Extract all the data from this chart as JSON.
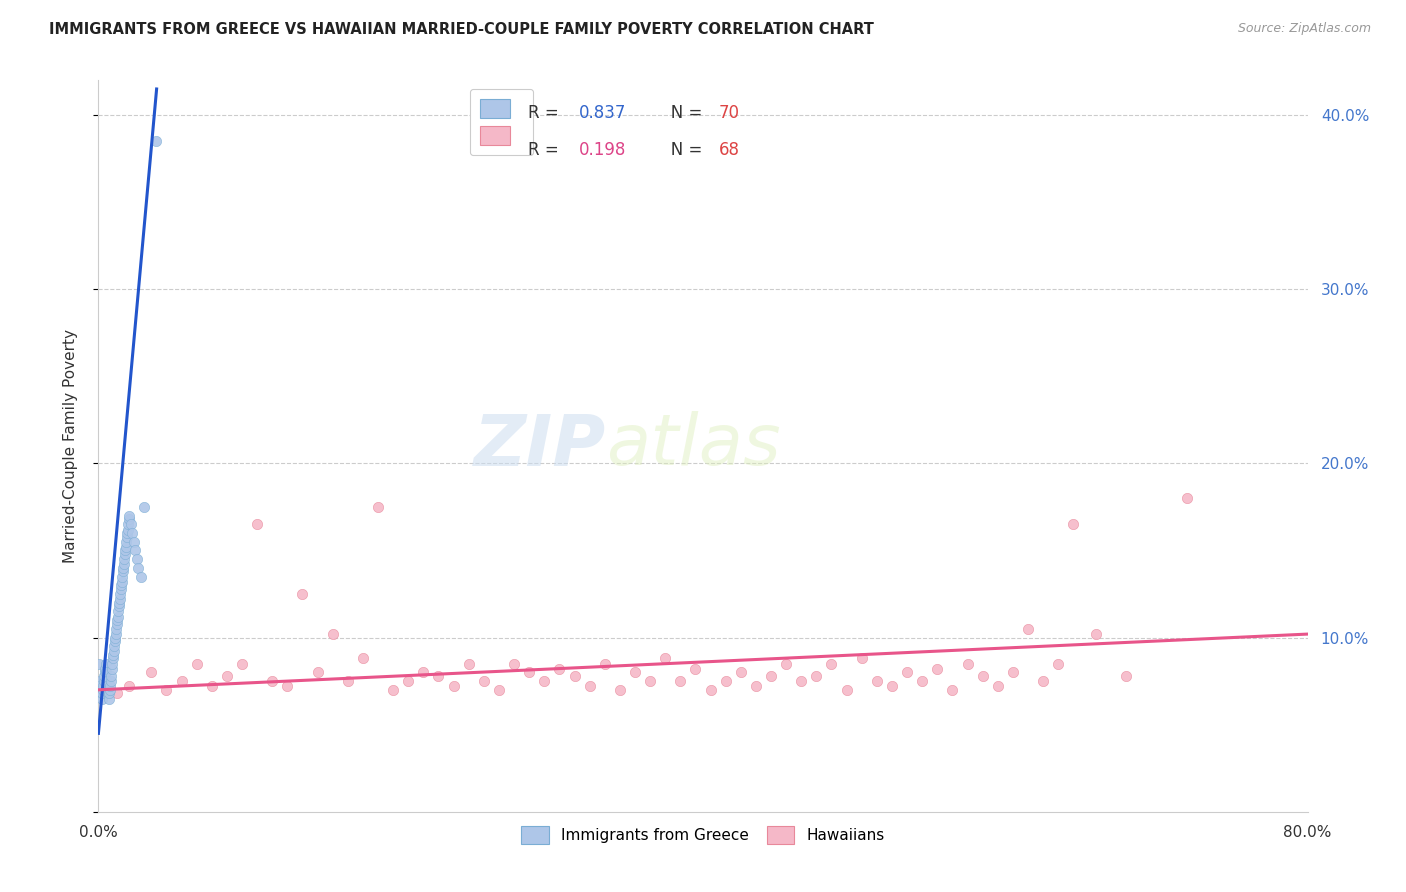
{
  "title": "IMMIGRANTS FROM GREECE VS HAWAIIAN MARRIED-COUPLE FAMILY POVERTY CORRELATION CHART",
  "source": "Source: ZipAtlas.com",
  "ylabel": "Married-Couple Family Poverty",
  "legend_blue_R": "0.837",
  "legend_blue_N": "70",
  "legend_pink_R": "0.198",
  "legend_pink_N": "68",
  "watermark_zip": "ZIP",
  "watermark_atlas": "atlas",
  "blue_color": "#aec6e8",
  "blue_edge": "#7aadd4",
  "blue_line_color": "#2255cc",
  "pink_color": "#f5b8c8",
  "pink_edge": "#e8889a",
  "pink_line_color": "#e8558a",
  "right_tick_color": "#4477cc",
  "legend_blue_color": "#3366cc",
  "legend_pink_color": "#dd4488",
  "legend_n_color": "#dd4444",
  "xlim": [
    0,
    80
  ],
  "ylim": [
    0,
    42
  ],
  "yticks": [
    0,
    10,
    20,
    30,
    40
  ],
  "right_ytick_labels": [
    "",
    "10.0%",
    "20.0%",
    "30.0%",
    "40.0%"
  ],
  "xtick_positions": [
    0,
    10,
    20,
    30,
    40,
    50,
    60,
    70,
    80
  ],
  "xtick_labels": [
    "0.0%",
    "",
    "",
    "",
    "",
    "",
    "",
    "",
    "80.0%"
  ],
  "grid_color": "#cccccc",
  "bg_color": "#ffffff",
  "blue_x": [
    0.05,
    0.08,
    0.12,
    0.15,
    0.18,
    0.22,
    0.25,
    0.28,
    0.32,
    0.35,
    0.38,
    0.42,
    0.45,
    0.48,
    0.52,
    0.55,
    0.58,
    0.62,
    0.65,
    0.68,
    0.72,
    0.75,
    0.78,
    0.82,
    0.85,
    0.88,
    0.92,
    0.95,
    0.98,
    1.02,
    1.05,
    1.08,
    1.12,
    1.15,
    1.18,
    1.22,
    1.25,
    1.28,
    1.32,
    1.35,
    1.38,
    1.42,
    1.45,
    1.48,
    1.52,
    1.55,
    1.58,
    1.62,
    1.65,
    1.68,
    1.72,
    1.75,
    1.78,
    1.82,
    1.85,
    1.88,
    1.92,
    1.95,
    1.98,
    2.02,
    2.05,
    2.15,
    2.25,
    2.35,
    2.45,
    2.55,
    2.65,
    2.8,
    3.0,
    3.8
  ],
  "blue_y": [
    8.5,
    7.5,
    7.2,
    7.0,
    6.8,
    6.5,
    6.8,
    7.0,
    7.2,
    7.5,
    7.8,
    8.0,
    8.2,
    8.5,
    8.0,
    7.5,
    7.2,
    7.0,
    6.8,
    6.5,
    6.8,
    7.0,
    7.2,
    7.5,
    7.8,
    8.2,
    8.5,
    8.8,
    9.0,
    9.2,
    9.5,
    9.8,
    10.0,
    10.2,
    10.5,
    10.8,
    11.0,
    11.2,
    11.5,
    11.8,
    12.0,
    12.2,
    12.5,
    12.8,
    13.0,
    13.2,
    13.5,
    13.8,
    14.0,
    14.2,
    14.5,
    14.8,
    15.0,
    15.2,
    15.5,
    15.8,
    16.0,
    16.2,
    16.5,
    16.8,
    17.0,
    16.5,
    16.0,
    15.5,
    15.0,
    14.5,
    14.0,
    13.5,
    17.5,
    38.5
  ],
  "pink_x": [
    0.5,
    1.2,
    2.0,
    3.5,
    4.5,
    5.5,
    6.5,
    7.5,
    8.5,
    9.5,
    10.5,
    11.5,
    12.5,
    13.5,
    14.5,
    15.5,
    16.5,
    17.5,
    18.5,
    19.5,
    20.5,
    21.5,
    22.5,
    23.5,
    24.5,
    25.5,
    26.5,
    27.5,
    28.5,
    29.5,
    30.5,
    31.5,
    32.5,
    33.5,
    34.5,
    35.5,
    36.5,
    37.5,
    38.5,
    39.5,
    40.5,
    41.5,
    42.5,
    43.5,
    44.5,
    45.5,
    46.5,
    47.5,
    48.5,
    49.5,
    50.5,
    51.5,
    52.5,
    53.5,
    54.5,
    55.5,
    56.5,
    57.5,
    58.5,
    59.5,
    60.5,
    61.5,
    62.5,
    63.5,
    64.5,
    66.0,
    68.0,
    72.0
  ],
  "pink_y": [
    7.5,
    6.8,
    7.2,
    8.0,
    7.0,
    7.5,
    8.5,
    7.2,
    7.8,
    8.5,
    16.5,
    7.5,
    7.2,
    12.5,
    8.0,
    10.2,
    7.5,
    8.8,
    17.5,
    7.0,
    7.5,
    8.0,
    7.8,
    7.2,
    8.5,
    7.5,
    7.0,
    8.5,
    8.0,
    7.5,
    8.2,
    7.8,
    7.2,
    8.5,
    7.0,
    8.0,
    7.5,
    8.8,
    7.5,
    8.2,
    7.0,
    7.5,
    8.0,
    7.2,
    7.8,
    8.5,
    7.5,
    7.8,
    8.5,
    7.0,
    8.8,
    7.5,
    7.2,
    8.0,
    7.5,
    8.2,
    7.0,
    8.5,
    7.8,
    7.2,
    8.0,
    10.5,
    7.5,
    8.5,
    16.5,
    10.2,
    7.8,
    18.0
  ],
  "blue_line_x0": 0.0,
  "blue_line_y0": 4.5,
  "blue_line_x1": 3.85,
  "blue_line_y1": 41.5,
  "pink_line_x0": 0.0,
  "pink_line_y0": 7.0,
  "pink_line_x1": 80.0,
  "pink_line_y1": 10.2
}
